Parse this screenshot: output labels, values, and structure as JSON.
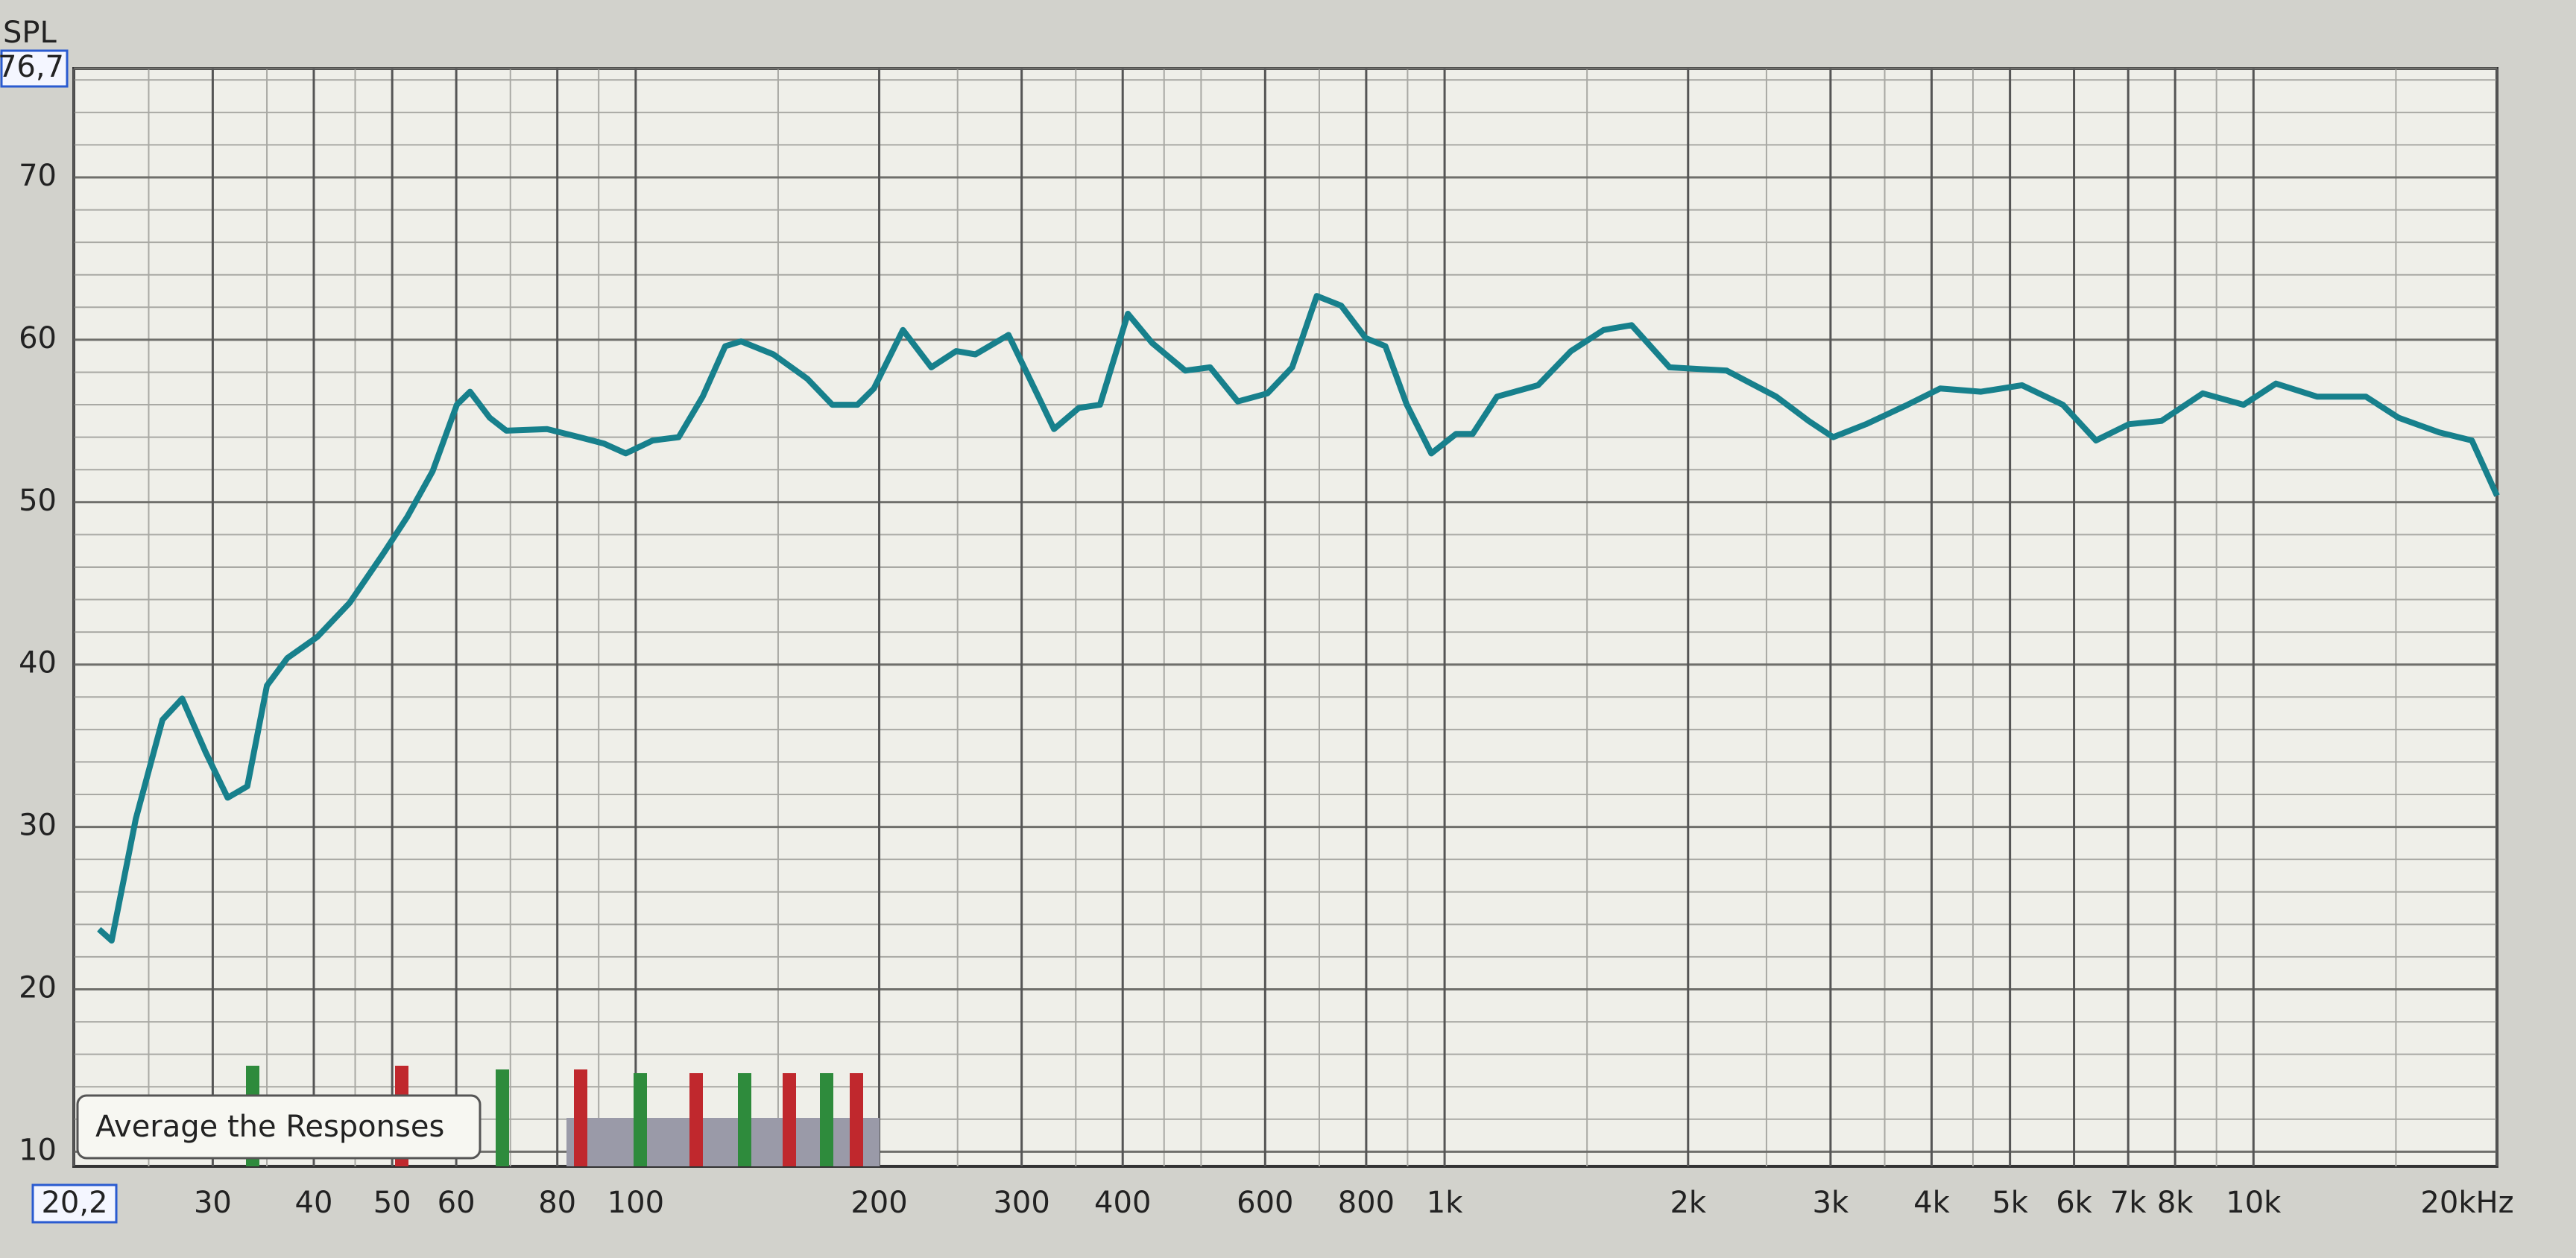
{
  "chart_data": {
    "type": "line",
    "y_label": "SPL",
    "annotation": "Average the Responses",
    "xscale": "log",
    "grid": true,
    "xlim": [
      20.2,
      20000
    ],
    "ylim": [
      9.1,
      76.7
    ],
    "xticks": [
      {
        "value": 20.2,
        "label": "20,2"
      },
      30,
      40,
      50,
      60,
      80,
      100,
      200,
      300,
      400,
      600,
      800,
      {
        "value": 1000,
        "label": "1k"
      },
      {
        "value": 2000,
        "label": "2k"
      },
      {
        "value": 3000,
        "label": "3k"
      },
      {
        "value": 4000,
        "label": "4k"
      },
      {
        "value": 5000,
        "label": "5k"
      },
      {
        "value": 6000,
        "label": "6k"
      },
      {
        "value": 7000,
        "label": "7k"
      },
      {
        "value": 8000,
        "label": "8k"
      },
      {
        "value": 10000,
        "label": "10k"
      },
      {
        "value": 20000,
        "label": "20kHz"
      }
    ],
    "xminorticks": [
      25,
      35,
      45,
      70,
      90,
      150,
      250,
      350,
      450,
      500,
      700,
      900,
      1500,
      2500,
      3500,
      4500,
      9000,
      15000
    ],
    "yticks": [
      10,
      20,
      30,
      40,
      50,
      60,
      70,
      {
        "value": 76.7,
        "label": "76,7"
      }
    ],
    "yminorticks": [
      12,
      14,
      16,
      18,
      22,
      24,
      26,
      28,
      32,
      34,
      36,
      38,
      42,
      44,
      46,
      48,
      52,
      54,
      56,
      58,
      62,
      64,
      66,
      68,
      72,
      74,
      76
    ],
    "series": [
      {
        "color": "#17808c",
        "x": [
          21.7,
          22.5,
          24.1,
          26,
          27.5,
          29.4,
          31.3,
          33.1,
          35,
          37.1,
          40.4,
          44.3,
          48.7,
          52.2,
          56.1,
          60.1,
          62.4,
          66,
          69.2,
          77.7,
          85.2,
          91.4,
          97.2,
          105,
          113,
          121,
          129,
          135,
          148,
          163,
          175,
          188,
          197,
          214,
          232,
          249,
          263,
          289,
          307,
          329,
          353,
          375,
          406,
          435,
          478,
          513,
          555,
          604,
          648,
          695,
          745,
          799,
          845,
          898,
          963,
          1033,
          1083,
          1161,
          1305,
          1433,
          1572,
          1703,
          1897,
          2232,
          2570,
          2819,
          3022,
          3318,
          3735,
          4098,
          4605,
          5172,
          5813,
          6387,
          7014,
          7695,
          8656,
          9721,
          10660,
          11980,
          13770,
          15110,
          16960,
          18620,
          20000
        ],
        "values": [
          23.7,
          23.0,
          30.5,
          36.6,
          37.9,
          34.6,
          31.8,
          32.5,
          38.7,
          40.4,
          41.7,
          43.8,
          46.8,
          49.1,
          51.9,
          56.0,
          56.8,
          55.2,
          54.4,
          54.5,
          54.0,
          53.6,
          53.0,
          53.8,
          54.0,
          56.5,
          59.6,
          59.9,
          59.1,
          57.6,
          56.0,
          56.0,
          57.0,
          60.6,
          58.3,
          59.3,
          59.1,
          60.3,
          57.6,
          54.5,
          55.8,
          56.0,
          61.6,
          59.8,
          58.1,
          58.3,
          56.2,
          56.7,
          58.3,
          62.7,
          62.1,
          60.1,
          59.6,
          56.0,
          53.0,
          54.2,
          54.2,
          56.5,
          57.2,
          59.3,
          60.6,
          60.9,
          58.3,
          58.1,
          56.5,
          55.0,
          54.0,
          54.8,
          56.0,
          57.0,
          56.8,
          57.2,
          56.0,
          53.8,
          54.8,
          55.0,
          56.7,
          56.0,
          57.3,
          56.5,
          56.5,
          55.2,
          54.3,
          53.8,
          50.4
        ]
      }
    ]
  }
}
